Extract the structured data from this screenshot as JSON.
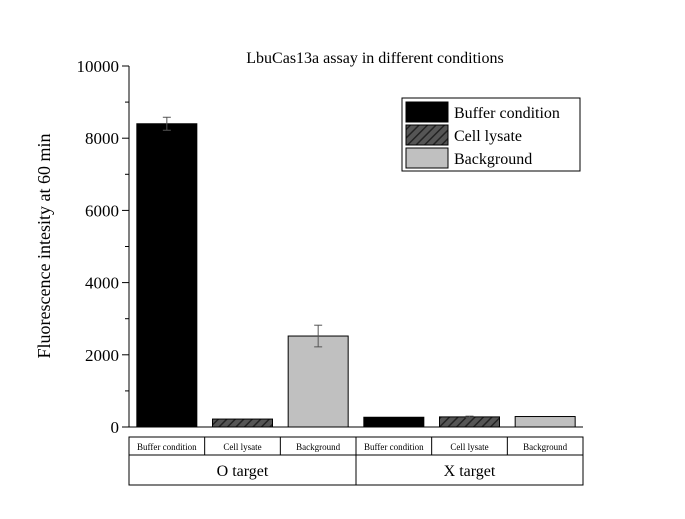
{
  "chart_data": {
    "type": "bar",
    "title": "LbuCas13a assay in different conditions",
    "ylabel": "Fluorescence intesity at 60 min",
    "xlabel": "",
    "ylim": [
      0,
      10000
    ],
    "yticks": [
      "0",
      "2000",
      "4000",
      "6000",
      "8000",
      "10000"
    ],
    "grid": false,
    "legend_position": "top-right",
    "groups": [
      {
        "label": "O target",
        "categories": [
          "Buffer condition",
          "Cell lysate",
          "Background"
        ],
        "values": [
          8400,
          220,
          2520
        ],
        "errors": [
          180,
          0,
          300
        ]
      },
      {
        "label": "X target",
        "categories": [
          "Buffer condition",
          "Cell lysate",
          "Background"
        ],
        "values": [
          270,
          280,
          290
        ],
        "errors": [
          0,
          20,
          0
        ]
      }
    ],
    "series": [
      {
        "name": "Buffer condition",
        "color": "#000000",
        "pattern": "solid"
      },
      {
        "name": "Cell lysate",
        "color": "#3a3a3a",
        "pattern": "hatch"
      },
      {
        "name": "Background",
        "color": "#c0c0c0",
        "pattern": "solid"
      }
    ]
  }
}
